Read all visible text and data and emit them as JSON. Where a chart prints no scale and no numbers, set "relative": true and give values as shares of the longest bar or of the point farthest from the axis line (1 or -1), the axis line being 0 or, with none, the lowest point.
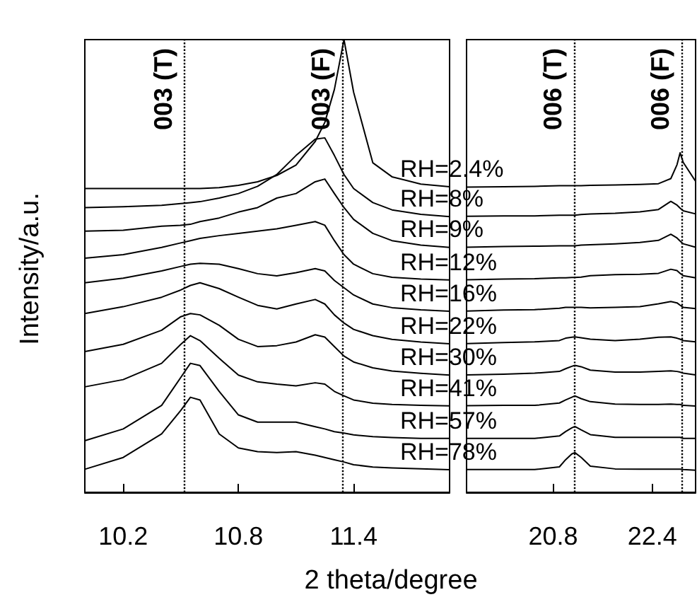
{
  "chart_data": [
    {
      "type": "line",
      "relative": true,
      "ylabel": "Intensity/a.u.",
      "xlabel": "2 theta/degree",
      "xlim": [
        10.0,
        11.9
      ],
      "xticks": [
        10.2,
        10.8,
        11.4
      ],
      "x": [
        10.0,
        10.2,
        10.4,
        10.5,
        10.55,
        10.6,
        10.7,
        10.8,
        10.9,
        11.0,
        11.1,
        11.2,
        11.25,
        11.3,
        11.35,
        11.4,
        11.5,
        11.6,
        11.75,
        11.9
      ],
      "ref_lines": [
        {
          "axis": "x",
          "value": 10.52,
          "label": "003 (T)",
          "color": "#000000",
          "line_style": "dotted"
        },
        {
          "axis": "x",
          "value": 11.34,
          "label": "003 (F)",
          "color": "#000000",
          "line_style": "dotted"
        }
      ],
      "series": [
        {
          "color": "#000000",
          "values": [
            0.671,
            0.671,
            0.671,
            0.671,
            0.671,
            0.671,
            0.673,
            0.678,
            0.686,
            0.7,
            0.723,
            0.775,
            0.817,
            0.89,
            1,
            0.884,
            0.728,
            0.697,
            0.681,
            0.675
          ]
        },
        {
          "color": "#000000",
          "values": [
            0.629,
            0.631,
            0.634,
            0.638,
            0.64,
            0.642,
            0.65,
            0.66,
            0.676,
            0.702,
            0.744,
            0.78,
            0.783,
            0.744,
            0.702,
            0.671,
            0.64,
            0.624,
            0.614,
            0.609
          ]
        },
        {
          "color": "#000000",
          "values": [
            0.577,
            0.579,
            0.588,
            0.59,
            0.592,
            0.598,
            0.606,
            0.619,
            0.629,
            0.65,
            0.66,
            0.686,
            0.692,
            0.66,
            0.629,
            0.603,
            0.572,
            0.556,
            0.546,
            0.541
          ]
        },
        {
          "color": "#000000",
          "values": [
            0.517,
            0.525,
            0.541,
            0.551,
            0.556,
            0.561,
            0.567,
            0.572,
            0.577,
            0.582,
            0.59,
            0.598,
            0.59,
            0.556,
            0.525,
            0.504,
            0.483,
            0.475,
            0.471,
            0.469
          ]
        },
        {
          "color": "#000000",
          "values": [
            0.463,
            0.473,
            0.489,
            0.499,
            0.504,
            0.506,
            0.504,
            0.494,
            0.483,
            0.478,
            0.485,
            0.494,
            0.489,
            0.468,
            0.452,
            0.436,
            0.416,
            0.408,
            0.403,
            0.4
          ]
        },
        {
          "color": "#000000",
          "values": [
            0.395,
            0.41,
            0.431,
            0.447,
            0.457,
            0.463,
            0.45,
            0.431,
            0.413,
            0.405,
            0.416,
            0.426,
            0.416,
            0.392,
            0.374,
            0.36,
            0.346,
            0.338,
            0.332,
            0.328
          ]
        },
        {
          "color": "#000000",
          "values": [
            0.311,
            0.327,
            0.358,
            0.388,
            0.395,
            0.392,
            0.369,
            0.338,
            0.322,
            0.324,
            0.332,
            0.348,
            0.343,
            0.322,
            0.301,
            0.288,
            0.275,
            0.268,
            0.263,
            0.259
          ]
        },
        {
          "color": "#000000",
          "values": [
            0.233,
            0.249,
            0.285,
            0.327,
            0.346,
            0.335,
            0.296,
            0.259,
            0.244,
            0.239,
            0.235,
            0.242,
            0.239,
            0.223,
            0.213,
            0.204,
            0.197,
            0.194,
            0.192,
            0.191
          ]
        },
        {
          "color": "#000000",
          "values": [
            0.114,
            0.14,
            0.192,
            0.254,
            0.285,
            0.28,
            0.223,
            0.171,
            0.155,
            0.155,
            0.155,
            0.145,
            0.14,
            0.134,
            0.131,
            0.127,
            0.123,
            0.121,
            0.119,
            0.119
          ]
        },
        {
          "color": "#000000",
          "values": [
            0.051,
            0.077,
            0.129,
            0.181,
            0.21,
            0.204,
            0.129,
            0.098,
            0.09,
            0.088,
            0.09,
            0.082,
            0.077,
            0.072,
            0.067,
            0.061,
            0.056,
            0.054,
            0.052,
            0.05
          ]
        }
      ]
    },
    {
      "type": "line",
      "relative": true,
      "xlim": [
        19.4,
        23.1
      ],
      "xticks": [
        20.8,
        22.4
      ],
      "x": [
        19.4,
        20.0,
        20.5,
        20.9,
        21.0,
        21.1,
        21.15,
        21.25,
        21.4,
        21.8,
        22.2,
        22.5,
        22.7,
        22.8,
        22.85,
        22.9,
        23.1
      ],
      "ref_lines": [
        {
          "axis": "x",
          "value": 21.14,
          "label": "006 (T)",
          "color": "#000000",
          "line_style": "dotted"
        },
        {
          "axis": "x",
          "value": 22.87,
          "label": "006 (F)",
          "color": "#000000",
          "line_style": "dotted"
        }
      ],
      "series": [
        {
          "name": "RH=2.4%",
          "color": "#000000",
          "values": [
            0.899,
            0.9,
            0.901,
            0.903,
            0.903,
            0.903,
            0.903,
            0.903,
            0.904,
            0.905,
            0.907,
            0.909,
            0.924,
            0.965,
            1,
            0.972,
            0.916
          ]
        },
        {
          "name": "RH=8%",
          "color": "#000000",
          "values": [
            0.813,
            0.814,
            0.814,
            0.816,
            0.816,
            0.816,
            0.816,
            0.818,
            0.82,
            0.822,
            0.826,
            0.833,
            0.857,
            0.846,
            0.837,
            0.829,
            0.82
          ]
        },
        {
          "name": "RH=9%",
          "color": "#000000",
          "values": [
            0.722,
            0.724,
            0.725,
            0.726,
            0.726,
            0.726,
            0.726,
            0.728,
            0.729,
            0.732,
            0.736,
            0.742,
            0.76,
            0.749,
            0.74,
            0.732,
            0.722
          ]
        },
        {
          "name": "RH=12%",
          "color": "#000000",
          "values": [
            0.626,
            0.628,
            0.629,
            0.632,
            0.632,
            0.633,
            0.633,
            0.634,
            0.638,
            0.641,
            0.642,
            0.645,
            0.657,
            0.653,
            0.645,
            0.638,
            0.632
          ]
        },
        {
          "name": "RH=16%",
          "color": "#000000",
          "values": [
            0.534,
            0.537,
            0.538,
            0.542,
            0.545,
            0.545,
            0.545,
            0.545,
            0.543,
            0.545,
            0.547,
            0.555,
            0.562,
            0.558,
            0.551,
            0.545,
            0.541
          ]
        },
        {
          "name": "RH=22%",
          "color": "#000000",
          "values": [
            0.438,
            0.441,
            0.443,
            0.447,
            0.454,
            0.457,
            0.458,
            0.455,
            0.451,
            0.447,
            0.451,
            0.457,
            0.458,
            0.454,
            0.451,
            0.447,
            0.443
          ]
        },
        {
          "name": "RH=30%",
          "color": "#000000",
          "values": [
            0.346,
            0.348,
            0.351,
            0.356,
            0.364,
            0.371,
            0.374,
            0.37,
            0.36,
            0.354,
            0.354,
            0.356,
            0.358,
            0.356,
            0.354,
            0.351,
            0.346
          ]
        },
        {
          "name": "RH=41%",
          "color": "#000000",
          "values": [
            0.255,
            0.256,
            0.256,
            0.263,
            0.272,
            0.28,
            0.284,
            0.276,
            0.267,
            0.26,
            0.259,
            0.259,
            0.26,
            0.259,
            0.259,
            0.256,
            0.254
          ]
        },
        {
          "name": "RH=57%",
          "color": "#000000",
          "values": [
            0.159,
            0.159,
            0.159,
            0.166,
            0.179,
            0.19,
            0.194,
            0.184,
            0.17,
            0.162,
            0.162,
            0.162,
            0.162,
            0.162,
            0.162,
            0.159,
            0.159
          ]
        },
        {
          "name": "RH=78%",
          "color": "#000000",
          "values": [
            0.067,
            0.067,
            0.067,
            0.075,
            0.096,
            0.113,
            0.117,
            0.103,
            0.077,
            0.069,
            0.068,
            0.068,
            0.068,
            0.068,
            0.068,
            0.067,
            0.065
          ]
        }
      ]
    }
  ]
}
